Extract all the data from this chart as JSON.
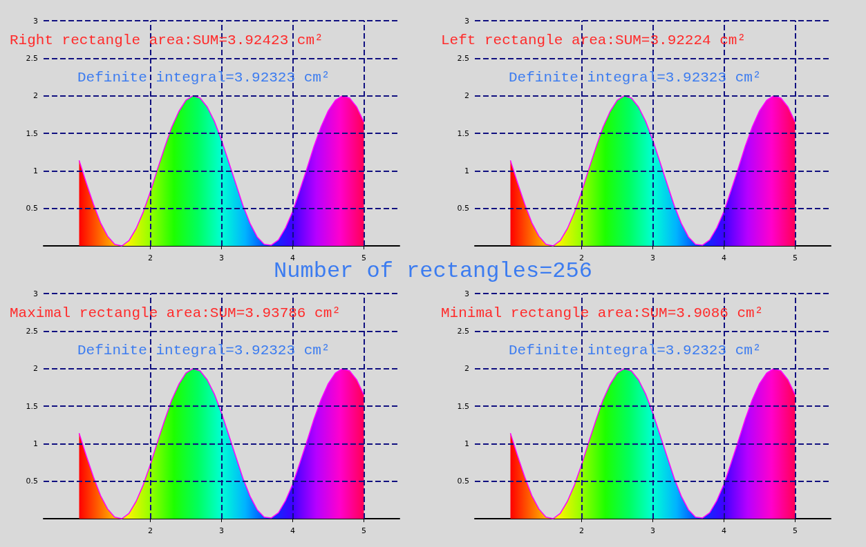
{
  "chart_data": [
    {
      "type": "area",
      "title": "Number of rectangles=256",
      "annotations": [
        "Right rectangle area:SUM=3.92423 cm²",
        "Definite integral=3.92323 cm²"
      ],
      "x": [
        1,
        1.1,
        1.2,
        1.3,
        1.4,
        1.5,
        1.6,
        1.7,
        1.8,
        1.9,
        2,
        2.1,
        2.2,
        2.3,
        2.4,
        2.5,
        2.6,
        2.7,
        2.8,
        2.9,
        3,
        3.1,
        3.2,
        3.3,
        3.4,
        3.5,
        3.6,
        3.7,
        3.8,
        3.9,
        4,
        4.1,
        4.2,
        4.3,
        4.4,
        4.5,
        4.6,
        4.7,
        4.8,
        4.9,
        5
      ],
      "series": [
        {
          "color": "#ff00ff",
          "values": [
            1.14,
            0.84,
            0.56,
            0.31,
            0.13,
            0.02,
            0,
            0.07,
            0.23,
            0.45,
            0.72,
            1.02,
            1.31,
            1.58,
            1.79,
            1.94,
            2,
            1.97,
            1.85,
            1.66,
            1.41,
            1.12,
            0.83,
            0.54,
            0.3,
            0.12,
            0.02,
            0.01,
            0.08,
            0.24,
            0.46,
            0.74,
            1.03,
            1.33,
            1.59,
            1.8,
            1.94,
            2,
            1.97,
            1.85,
            1.65
          ]
        }
      ],
      "xlim": [
        0.5,
        5.5
      ],
      "xticks": [
        2,
        3,
        4,
        5
      ],
      "ylim": [
        0,
        3
      ],
      "yticks": [
        0.5,
        1,
        1.5,
        2,
        2.5,
        3
      ],
      "grid": true
    },
    {
      "type": "area",
      "annotations": [
        "Left rectangle area:SUM=3.92224 cm²",
        "Definite integral=3.92323 cm²"
      ],
      "x": [
        1,
        1.1,
        1.2,
        1.3,
        1.4,
        1.5,
        1.6,
        1.7,
        1.8,
        1.9,
        2,
        2.1,
        2.2,
        2.3,
        2.4,
        2.5,
        2.6,
        2.7,
        2.8,
        2.9,
        3,
        3.1,
        3.2,
        3.3,
        3.4,
        3.5,
        3.6,
        3.7,
        3.8,
        3.9,
        4,
        4.1,
        4.2,
        4.3,
        4.4,
        4.5,
        4.6,
        4.7,
        4.8,
        4.9,
        5
      ],
      "series": [
        {
          "color": "#ff00ff",
          "values": [
            1.14,
            0.84,
            0.56,
            0.31,
            0.13,
            0.02,
            0,
            0.07,
            0.23,
            0.45,
            0.72,
            1.02,
            1.31,
            1.58,
            1.79,
            1.94,
            2,
            1.97,
            1.85,
            1.66,
            1.41,
            1.12,
            0.83,
            0.54,
            0.3,
            0.12,
            0.02,
            0.01,
            0.08,
            0.24,
            0.46,
            0.74,
            1.03,
            1.33,
            1.59,
            1.8,
            1.94,
            2,
            1.97,
            1.85,
            1.65
          ]
        }
      ],
      "xlim": [
        0.5,
        5.5
      ],
      "xticks": [
        2,
        3,
        4,
        5
      ],
      "ylim": [
        0,
        3
      ],
      "yticks": [
        0.5,
        1,
        1.5,
        2,
        2.5,
        3
      ],
      "grid": true
    },
    {
      "type": "area",
      "annotations": [
        "Maximal rectangle area:SUM=3.93786 cm²",
        "Definite integral=3.92323 cm²"
      ],
      "x": [
        1,
        1.1,
        1.2,
        1.3,
        1.4,
        1.5,
        1.6,
        1.7,
        1.8,
        1.9,
        2,
        2.1,
        2.2,
        2.3,
        2.4,
        2.5,
        2.6,
        2.7,
        2.8,
        2.9,
        3,
        3.1,
        3.2,
        3.3,
        3.4,
        3.5,
        3.6,
        3.7,
        3.8,
        3.9,
        4,
        4.1,
        4.2,
        4.3,
        4.4,
        4.5,
        4.6,
        4.7,
        4.8,
        4.9,
        5
      ],
      "series": [
        {
          "color": "#ff00ff",
          "values": [
            1.14,
            0.84,
            0.56,
            0.31,
            0.13,
            0.02,
            0,
            0.07,
            0.23,
            0.45,
            0.72,
            1.02,
            1.31,
            1.58,
            1.79,
            1.94,
            2,
            1.97,
            1.85,
            1.66,
            1.41,
            1.12,
            0.83,
            0.54,
            0.3,
            0.12,
            0.02,
            0.01,
            0.08,
            0.24,
            0.46,
            0.74,
            1.03,
            1.33,
            1.59,
            1.8,
            1.94,
            2,
            1.97,
            1.85,
            1.65
          ]
        }
      ],
      "xlim": [
        0.5,
        5.5
      ],
      "xticks": [
        2,
        3,
        4,
        5
      ],
      "ylim": [
        0,
        3
      ],
      "yticks": [
        0.5,
        1,
        1.5,
        2,
        2.5,
        3
      ],
      "grid": true
    },
    {
      "type": "area",
      "annotations": [
        "Minimal rectangle area:SUM=3.9086 cm²",
        "Definite integral=3.92323 cm²"
      ],
      "x": [
        1,
        1.1,
        1.2,
        1.3,
        1.4,
        1.5,
        1.6,
        1.7,
        1.8,
        1.9,
        2,
        2.1,
        2.2,
        2.3,
        2.4,
        2.5,
        2.6,
        2.7,
        2.8,
        2.9,
        3,
        3.1,
        3.2,
        3.3,
        3.4,
        3.5,
        3.6,
        3.7,
        3.8,
        3.9,
        4,
        4.1,
        4.2,
        4.3,
        4.4,
        4.5,
        4.6,
        4.7,
        4.8,
        4.9,
        5
      ],
      "series": [
        {
          "color": "#ff00ff",
          "values": [
            1.14,
            0.84,
            0.56,
            0.31,
            0.13,
            0.02,
            0,
            0.07,
            0.23,
            0.45,
            0.72,
            1.02,
            1.31,
            1.58,
            1.79,
            1.94,
            2,
            1.97,
            1.85,
            1.66,
            1.41,
            1.12,
            0.83,
            0.54,
            0.3,
            0.12,
            0.02,
            0.01,
            0.08,
            0.24,
            0.46,
            0.74,
            1.03,
            1.33,
            1.59,
            1.8,
            1.94,
            2,
            1.97,
            1.85,
            1.65
          ]
        }
      ],
      "xlim": [
        0.5,
        5.5
      ],
      "xticks": [
        2,
        3,
        4,
        5
      ],
      "ylim": [
        0,
        3
      ],
      "yticks": [
        0.5,
        1,
        1.5,
        2,
        2.5,
        3
      ],
      "grid": true
    }
  ]
}
